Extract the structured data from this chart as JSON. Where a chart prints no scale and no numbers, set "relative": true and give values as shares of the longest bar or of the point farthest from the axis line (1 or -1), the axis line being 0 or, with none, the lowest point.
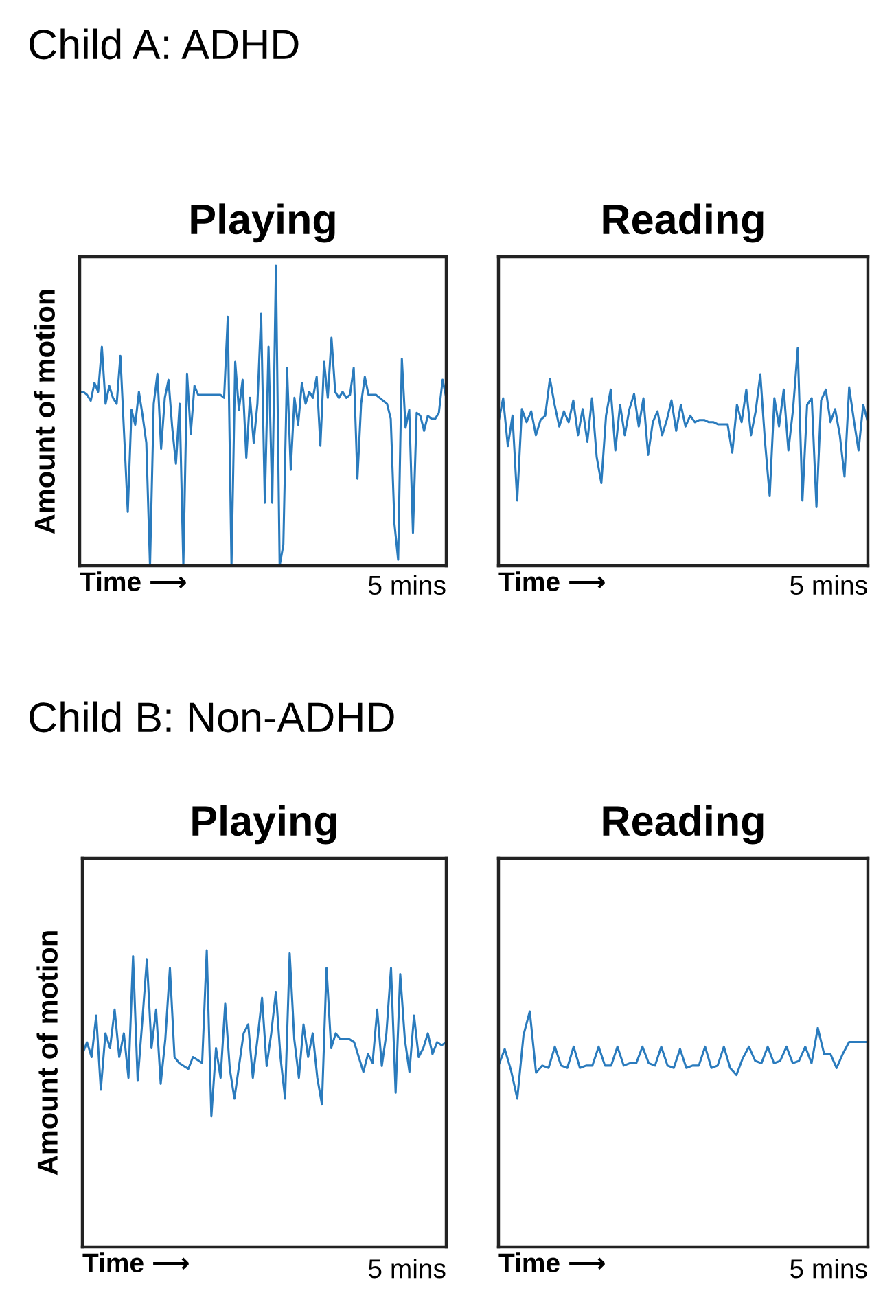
{
  "chart_data": [
    {
      "type": "line",
      "title": "Playing",
      "ylabel": "Amount of motion",
      "xlabel": "Time ⟶",
      "relative": true,
      "annotations": [
        "Child A: ADHD",
        "5 mins"
      ],
      "categories": [
        null,
        null,
        null,
        null,
        null,
        null,
        null,
        null,
        null,
        null,
        null,
        null,
        null,
        null,
        null,
        null,
        null,
        null,
        null,
        null,
        null,
        null,
        null,
        null,
        null,
        null,
        null,
        null,
        null,
        null,
        null,
        null,
        null,
        null,
        null,
        null,
        null,
        null,
        null,
        null,
        null,
        null,
        null,
        null,
        null,
        null,
        null,
        null,
        null,
        null,
        null,
        null,
        null,
        null,
        null,
        null,
        null,
        null,
        null,
        null,
        null,
        null,
        null,
        null,
        null,
        null,
        null,
        null,
        null,
        null,
        null,
        null,
        null,
        null,
        null,
        null,
        null,
        null,
        null,
        null,
        null,
        null,
        null,
        null,
        null,
        null,
        null,
        null,
        null,
        null,
        null,
        null,
        null,
        null,
        null,
        null,
        null,
        null,
        null,
        null
      ],
      "series": [
        {
          "color": "#2a7bbd",
          "values": [
            0.58,
            0.58,
            0.57,
            0.55,
            0.61,
            0.58,
            0.73,
            0.54,
            0.6,
            0.56,
            0.54,
            0.7,
            0.44,
            0.18,
            0.52,
            0.47,
            0.58,
            0.5,
            0.41,
            0.0,
            0.54,
            0.64,
            0.39,
            0.56,
            0.62,
            0.46,
            0.34,
            0.54,
            0.0,
            0.64,
            0.44,
            0.6,
            0.57,
            0.57,
            0.57,
            0.57,
            0.57,
            0.57,
            0.57,
            0.56,
            0.83,
            0.0,
            0.68,
            0.52,
            0.62,
            0.36,
            0.56,
            0.41,
            0.54,
            0.84,
            0.21,
            0.73,
            0.21,
            1.0,
            0.0,
            0.07,
            0.66,
            0.32,
            0.56,
            0.47,
            0.61,
            0.54,
            0.58,
            0.56,
            0.63,
            0.4,
            0.68,
            0.56,
            0.76,
            0.58,
            0.56,
            0.58,
            0.56,
            0.57,
            0.66,
            0.29,
            0.54,
            0.63,
            0.57,
            0.57,
            0.57,
            0.56,
            0.55,
            0.54,
            0.49,
            0.14,
            0.02,
            0.69,
            0.46,
            0.52,
            0.11,
            0.51,
            0.5,
            0.45,
            0.5,
            0.49,
            0.49,
            0.51,
            0.62,
            0.56
          ]
        }
      ]
    },
    {
      "type": "line",
      "title": "Reading",
      "xlabel": "Time ⟶",
      "relative": true,
      "annotations": [
        "5 mins"
      ],
      "categories": [
        null,
        null,
        null,
        null,
        null,
        null,
        null,
        null,
        null,
        null,
        null,
        null,
        null,
        null,
        null,
        null,
        null,
        null,
        null,
        null,
        null,
        null,
        null,
        null,
        null,
        null,
        null,
        null,
        null,
        null,
        null,
        null,
        null,
        null,
        null,
        null,
        null,
        null,
        null,
        null,
        null,
        null,
        null,
        null,
        null,
        null,
        null,
        null,
        null,
        null,
        null,
        null,
        null,
        null,
        null,
        null,
        null,
        null,
        null,
        null,
        null,
        null,
        null,
        null,
        null,
        null,
        null,
        null,
        null,
        null,
        null,
        null,
        null,
        null,
        null,
        null,
        null,
        null,
        null,
        null
      ],
      "series": [
        {
          "color": "#2a7bbd",
          "values": [
            0.66,
            0.77,
            0.55,
            0.69,
            0.3,
            0.72,
            0.66,
            0.71,
            0.6,
            0.67,
            0.69,
            0.86,
            0.74,
            0.64,
            0.71,
            0.66,
            0.76,
            0.6,
            0.72,
            0.57,
            0.77,
            0.5,
            0.38,
            0.69,
            0.81,
            0.53,
            0.74,
            0.6,
            0.72,
            0.79,
            0.64,
            0.77,
            0.51,
            0.66,
            0.71,
            0.6,
            0.67,
            0.76,
            0.62,
            0.74,
            0.64,
            0.69,
            0.66,
            0.67,
            0.67,
            0.66,
            0.66,
            0.65,
            0.65,
            0.65,
            0.52,
            0.74,
            0.66,
            0.81,
            0.6,
            0.71,
            0.88,
            0.57,
            0.32,
            0.77,
            0.64,
            0.81,
            0.53,
            0.72,
            1.0,
            0.3,
            0.74,
            0.77,
            0.27,
            0.76,
            0.81,
            0.66,
            0.72,
            0.6,
            0.41,
            0.82,
            0.67,
            0.53,
            0.74,
            0.66
          ]
        }
      ]
    },
    {
      "type": "line",
      "title": "Playing",
      "ylabel": "Amount of motion",
      "xlabel": "Time ⟶",
      "relative": true,
      "annotations": [
        "Child B: Non-ADHD",
        "5 mins"
      ],
      "categories": [
        null,
        null,
        null,
        null,
        null,
        null,
        null,
        null,
        null,
        null,
        null,
        null,
        null,
        null,
        null,
        null,
        null,
        null,
        null,
        null,
        null,
        null,
        null,
        null,
        null,
        null,
        null,
        null,
        null,
        null,
        null,
        null,
        null,
        null,
        null,
        null,
        null,
        null,
        null,
        null,
        null,
        null,
        null,
        null,
        null,
        null,
        null,
        null,
        null,
        null,
        null,
        null,
        null,
        null,
        null,
        null,
        null,
        null,
        null,
        null,
        null,
        null,
        null,
        null,
        null,
        null,
        null,
        null,
        null,
        null,
        null,
        null,
        null,
        null,
        null,
        null,
        null,
        null,
        null,
        null
      ],
      "series": [
        {
          "color": "#2a7bbd",
          "values": [
            0.65,
            0.69,
            0.64,
            0.78,
            0.53,
            0.72,
            0.67,
            0.8,
            0.64,
            0.72,
            0.57,
            0.98,
            0.56,
            0.76,
            0.97,
            0.67,
            0.8,
            0.55,
            0.7,
            0.94,
            0.64,
            0.62,
            0.61,
            0.6,
            0.64,
            0.63,
            0.62,
            1.0,
            0.44,
            0.67,
            0.57,
            0.82,
            0.6,
            0.5,
            0.61,
            0.72,
            0.75,
            0.57,
            0.7,
            0.84,
            0.61,
            0.72,
            0.86,
            0.64,
            0.5,
            0.99,
            0.7,
            0.57,
            0.75,
            0.64,
            0.72,
            0.57,
            0.48,
            0.94,
            0.67,
            0.72,
            0.7,
            0.7,
            0.7,
            0.69,
            0.64,
            0.59,
            0.65,
            0.62,
            0.8,
            0.61,
            0.72,
            0.94,
            0.52,
            0.92,
            0.7,
            0.59,
            0.78,
            0.64,
            0.67,
            0.72,
            0.65,
            0.69,
            0.68,
            0.69
          ]
        }
      ]
    },
    {
      "type": "line",
      "title": "Reading",
      "xlabel": "Time ⟶",
      "relative": true,
      "annotations": [
        "5 mins"
      ],
      "categories": [
        null,
        null,
        null,
        null,
        null,
        null,
        null,
        null,
        null,
        null,
        null,
        null,
        null,
        null,
        null,
        null,
        null,
        null,
        null,
        null,
        null,
        null,
        null,
        null,
        null,
        null,
        null,
        null,
        null,
        null,
        null,
        null,
        null,
        null,
        null,
        null,
        null,
        null,
        null,
        null,
        null,
        null,
        null,
        null,
        null,
        null,
        null,
        null,
        null,
        null,
        null,
        null,
        null,
        null,
        null,
        null,
        null,
        null,
        null,
        null
      ],
      "series": [
        {
          "color": "#2a7bbd",
          "values": [
            0.77,
            0.84,
            0.75,
            0.63,
            0.9,
            1.0,
            0.74,
            0.77,
            0.76,
            0.85,
            0.77,
            0.76,
            0.85,
            0.76,
            0.77,
            0.77,
            0.85,
            0.77,
            0.77,
            0.85,
            0.77,
            0.78,
            0.78,
            0.85,
            0.78,
            0.77,
            0.85,
            0.77,
            0.76,
            0.84,
            0.76,
            0.77,
            0.77,
            0.85,
            0.76,
            0.77,
            0.85,
            0.76,
            0.73,
            0.8,
            0.85,
            0.79,
            0.78,
            0.85,
            0.78,
            0.79,
            0.85,
            0.78,
            0.79,
            0.85,
            0.78,
            0.93,
            0.82,
            0.82,
            0.76,
            0.82,
            0.87,
            0.87,
            0.87,
            0.87
          ]
        }
      ]
    }
  ]
}
